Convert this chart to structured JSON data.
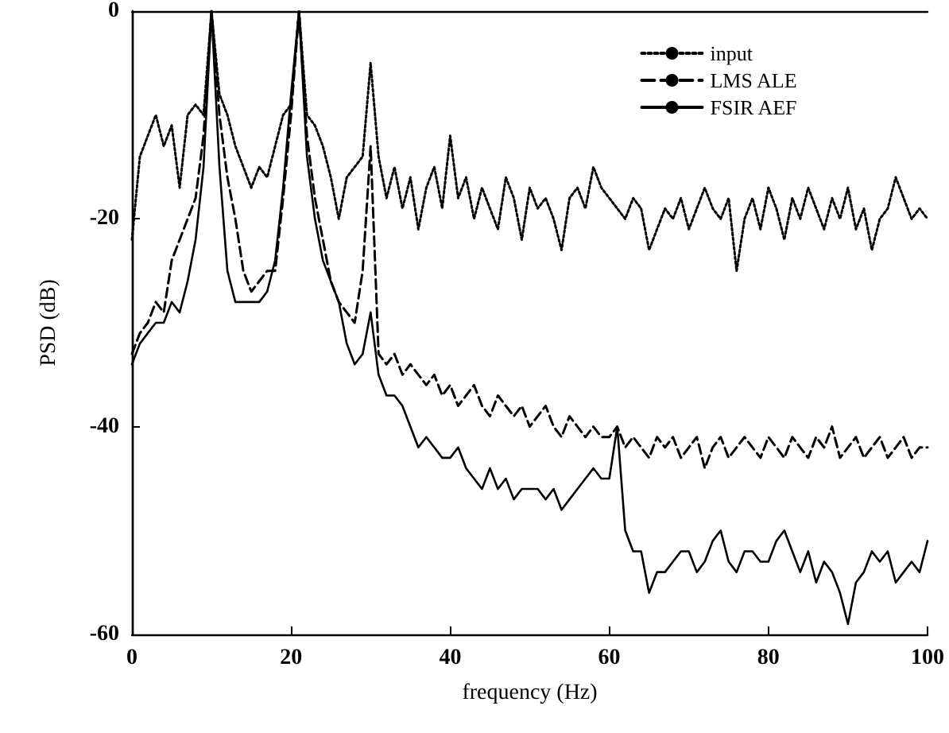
{
  "chart_data": {
    "type": "line",
    "xlabel": "frequency (Hz)",
    "ylabel": "PSD (dB)",
    "xlim": [
      0,
      100
    ],
    "xticks": [
      0,
      20,
      40,
      60,
      80,
      100
    ],
    "ylim": [
      -60,
      0
    ],
    "yticks": [
      -60,
      -40,
      -20,
      0
    ],
    "grid": false,
    "legend": "top right",
    "marker": "none",
    "x": [
      0,
      1,
      2,
      3,
      4,
      5,
      6,
      7,
      8,
      9,
      10,
      11,
      12,
      13,
      14,
      15,
      16,
      17,
      18,
      19,
      20,
      21,
      22,
      23,
      24,
      25,
      26,
      27,
      28,
      29,
      30,
      31,
      32,
      33,
      34,
      35,
      36,
      37,
      38,
      39,
      40,
      41,
      42,
      43,
      44,
      45,
      46,
      47,
      48,
      49,
      50,
      51,
      52,
      53,
      54,
      55,
      56,
      57,
      58,
      59,
      60,
      61,
      62,
      63,
      64,
      65,
      66,
      67,
      68,
      69,
      70,
      71,
      72,
      73,
      74,
      75,
      76,
      77,
      78,
      79,
      80,
      81,
      82,
      83,
      84,
      85,
      86,
      87,
      88,
      89,
      90,
      91,
      92,
      93,
      94,
      95,
      96,
      97,
      98,
      99,
      100
    ],
    "series": [
      {
        "name": "input",
        "color": "#000000",
        "line_style": "dotted",
        "values": [
          -22,
          -14,
          -12,
          -10,
          -13,
          -11,
          -17,
          -10,
          -9,
          -10,
          0,
          -8,
          -10,
          -13,
          -15,
          -17,
          -15,
          -16,
          -13,
          -10,
          -9,
          0,
          -10,
          -11,
          -13,
          -16,
          -20,
          -16,
          -15,
          -14,
          -5,
          -14,
          -18,
          -15,
          -19,
          -16,
          -21,
          -17,
          -15,
          -19,
          -12,
          -18,
          -16,
          -20,
          -17,
          -19,
          -21,
          -16,
          -18,
          -22,
          -17,
          -19,
          -18,
          -20,
          -23,
          -18,
          -17,
          -19,
          -15,
          -17,
          -18,
          -19,
          -20,
          -18,
          -19,
          -23,
          -21,
          -19,
          -20,
          -18,
          -21,
          -19,
          -17,
          -19,
          -20,
          -18,
          -25,
          -20,
          -18,
          -21,
          -17,
          -19,
          -22,
          -18,
          -20,
          -17,
          -19,
          -21,
          -18,
          -20,
          -17,
          -21,
          -19,
          -23,
          -20,
          -19,
          -16,
          -18,
          -20,
          -19,
          -20
        ]
      },
      {
        "name": "LMS ALE",
        "color": "#000000",
        "line_style": "dashed",
        "values": [
          -33,
          -31,
          -30,
          -28,
          -29,
          -24,
          -22,
          -20,
          -18,
          -12,
          0,
          -10,
          -16,
          -20,
          -25,
          -27,
          -26,
          -25,
          -25,
          -18,
          -10,
          0,
          -12,
          -18,
          -22,
          -26,
          -28,
          -29,
          -30,
          -25,
          -13,
          -33,
          -34,
          -33,
          -35,
          -34,
          -35,
          -36,
          -35,
          -37,
          -36,
          -38,
          -37,
          -36,
          -38,
          -39,
          -37,
          -38,
          -39,
          -38,
          -40,
          -39,
          -38,
          -40,
          -41,
          -39,
          -40,
          -41,
          -40,
          -41,
          -41,
          -40,
          -42,
          -41,
          -42,
          -43,
          -41,
          -42,
          -41,
          -43,
          -42,
          -41,
          -44,
          -42,
          -41,
          -43,
          -42,
          -41,
          -42,
          -43,
          -41,
          -42,
          -43,
          -41,
          -42,
          -43,
          -41,
          -42,
          -40,
          -43,
          -42,
          -41,
          -43,
          -42,
          -41,
          -43,
          -42,
          -41,
          -43,
          -42,
          -42
        ]
      },
      {
        "name": "FSIR AEF",
        "color": "#000000",
        "line_style": "solid",
        "values": [
          -34,
          -32,
          -31,
          -30,
          -30,
          -28,
          -29,
          -26,
          -22,
          -15,
          0,
          -15,
          -25,
          -28,
          -28,
          -28,
          -28,
          -27,
          -24,
          -17,
          -8,
          0,
          -14,
          -20,
          -24,
          -26,
          -28,
          -32,
          -34,
          -33,
          -29,
          -35,
          -37,
          -37,
          -38,
          -40,
          -42,
          -41,
          -42,
          -43,
          -43,
          -42,
          -44,
          -45,
          -46,
          -44,
          -46,
          -45,
          -47,
          -46,
          -46,
          -46,
          -47,
          -46,
          -48,
          -47,
          -46,
          -45,
          -44,
          -45,
          -45,
          -40,
          -50,
          -52,
          -52,
          -56,
          -54,
          -54,
          -53,
          -52,
          -52,
          -54,
          -53,
          -51,
          -50,
          -53,
          -54,
          -52,
          -52,
          -53,
          -53,
          -51,
          -50,
          -52,
          -54,
          -52,
          -55,
          -53,
          -54,
          -56,
          -59,
          -55,
          -54,
          -52,
          -53,
          -52,
          -55,
          -54,
          -53,
          -54,
          -51
        ]
      }
    ]
  }
}
